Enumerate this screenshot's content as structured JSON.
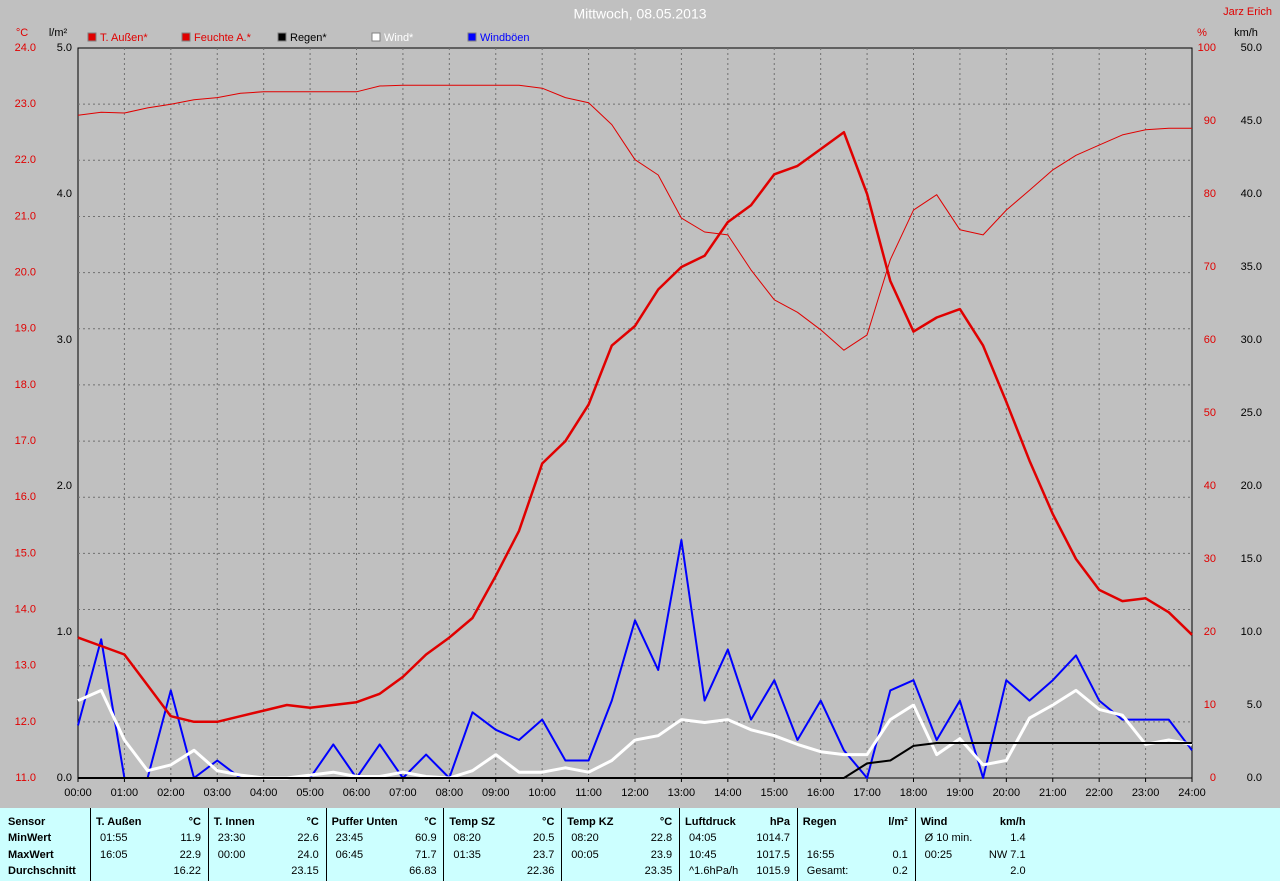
{
  "header": {
    "author": "Jarz Erich"
  },
  "chart_data": {
    "type": "line",
    "title": "Mittwoch, 08.05.2013",
    "ylabel": "°C",
    "y3label": "l/m²",
    "y2label": "%",
    "y4label": "km/h",
    "xlim": [
      0,
      24
    ],
    "xticks": [
      {
        "value": 0,
        "label": "00:00"
      },
      {
        "value": 1,
        "label": "01:00"
      },
      {
        "value": 2,
        "label": "02:00"
      },
      {
        "value": 3,
        "label": "03:00"
      },
      {
        "value": 4,
        "label": "04:00"
      },
      {
        "value": 5,
        "label": "05:00"
      },
      {
        "value": 6,
        "label": "06:00"
      },
      {
        "value": 7,
        "label": "07:00"
      },
      {
        "value": 8,
        "label": "08:00"
      },
      {
        "value": 9,
        "label": "09:00"
      },
      {
        "value": 10,
        "label": "10:00"
      },
      {
        "value": 11,
        "label": "11:00"
      },
      {
        "value": 12,
        "label": "12:00"
      },
      {
        "value": 13,
        "label": "13:00"
      },
      {
        "value": 14,
        "label": "14:00"
      },
      {
        "value": 15,
        "label": "15:00"
      },
      {
        "value": 16,
        "label": "16:00"
      },
      {
        "value": 17,
        "label": "17:00"
      },
      {
        "value": 18,
        "label": "18:00"
      },
      {
        "value": 19,
        "label": "19:00"
      },
      {
        "value": 20,
        "label": "20:00"
      },
      {
        "value": 21,
        "label": "21:00"
      },
      {
        "value": 22,
        "label": "22:00"
      },
      {
        "value": 23,
        "label": "23:00"
      },
      {
        "value": 24,
        "label": "24:00"
      }
    ],
    "ylim": [
      11,
      24
    ],
    "yticks": [
      {
        "value": 11,
        "label": "11.0"
      },
      {
        "value": 12,
        "label": "12.0"
      },
      {
        "value": 13,
        "label": "13.0"
      },
      {
        "value": 14,
        "label": "14.0"
      },
      {
        "value": 15,
        "label": "15.0"
      },
      {
        "value": 16,
        "label": "16.0"
      },
      {
        "value": 17,
        "label": "17.0"
      },
      {
        "value": 18,
        "label": "18.0"
      },
      {
        "value": 19,
        "label": "19.0"
      },
      {
        "value": 20,
        "label": "20.0"
      },
      {
        "value": 21,
        "label": "21.0"
      },
      {
        "value": 22,
        "label": "22.0"
      },
      {
        "value": 23,
        "label": "23.0"
      },
      {
        "value": 24,
        "label": "24.0"
      }
    ],
    "y3lim": [
      0,
      5
    ],
    "y3ticks": [
      {
        "value": 0,
        "label": "0.0"
      },
      {
        "value": 1,
        "label": "1.0"
      },
      {
        "value": 2,
        "label": "2.0"
      },
      {
        "value": 3,
        "label": "3.0"
      },
      {
        "value": 4,
        "label": "4.0"
      },
      {
        "value": 5,
        "label": "5.0"
      }
    ],
    "y2lim": [
      0,
      100
    ],
    "y2ticks": [
      0,
      10,
      20,
      30,
      40,
      50,
      60,
      70,
      80,
      90,
      100
    ],
    "y4lim": [
      0,
      50
    ],
    "y4ticks": [
      {
        "value": 0,
        "label": "0.0"
      },
      {
        "value": 5,
        "label": "5.0"
      },
      {
        "value": 10,
        "label": "10.0"
      },
      {
        "value": 15,
        "label": "15.0"
      },
      {
        "value": 20,
        "label": "20.0"
      },
      {
        "value": 25,
        "label": "25.0"
      },
      {
        "value": 30,
        "label": "30.0"
      },
      {
        "value": 35,
        "label": "35.0"
      },
      {
        "value": 40,
        "label": "40.0"
      },
      {
        "value": 45,
        "label": "45.0"
      },
      {
        "value": 50,
        "label": "50.0"
      }
    ],
    "grid": true,
    "x": [
      0,
      0.5,
      1,
      1.5,
      2,
      2.5,
      3,
      3.5,
      4,
      4.5,
      5,
      5.5,
      6,
      6.5,
      7,
      7.5,
      8,
      8.5,
      9,
      9.5,
      10,
      10.5,
      11,
      11.5,
      12,
      12.5,
      13,
      13.5,
      14,
      14.5,
      15,
      15.5,
      16,
      16.5,
      17,
      17.5,
      18,
      18.5,
      19,
      19.5,
      20,
      20.5,
      21,
      21.5,
      22,
      22.5,
      23,
      23.5,
      24
    ],
    "series": [
      {
        "name": "T. Außen*",
        "color": "#e00000",
        "axis": "y",
        "values": [
          13.5,
          13.35,
          13.2,
          12.65,
          12.1,
          12.0,
          12.0,
          12.1,
          12.2,
          12.3,
          12.25,
          12.3,
          12.35,
          12.5,
          12.8,
          13.2,
          13.5,
          13.85,
          14.6,
          15.4,
          16.6,
          17.0,
          17.65,
          18.7,
          19.05,
          19.7,
          20.1,
          20.3,
          20.9,
          21.2,
          21.75,
          21.9,
          22.2,
          22.5,
          21.4,
          19.85,
          18.95,
          19.2,
          19.35,
          18.7,
          17.7,
          16.65,
          15.7,
          14.9,
          14.35,
          14.15,
          14.2,
          13.95,
          13.55
        ]
      },
      {
        "name": "Feuchte A.*",
        "color": "#e00000",
        "axis": "y2",
        "values": [
          90.8,
          91.2,
          91.1,
          91.8,
          92.3,
          92.9,
          93.2,
          93.8,
          94.0,
          94.0,
          94.0,
          94.0,
          94.0,
          94.8,
          94.9,
          94.9,
          94.9,
          94.9,
          94.9,
          94.9,
          94.5,
          93.2,
          92.5,
          89.5,
          84.7,
          82.6,
          76.7,
          74.8,
          74.4,
          69.6,
          65.5,
          63.8,
          61.4,
          58.6,
          60.7,
          71.0,
          77.8,
          79.9,
          75.1,
          74.4,
          77.8,
          80.5,
          83.3,
          85.3,
          86.7,
          88.1,
          88.8,
          89.0,
          89.0
        ]
      },
      {
        "name": "Regen*",
        "color": "#000000",
        "axis": "y3",
        "values": [
          0,
          0,
          0,
          0,
          0,
          0,
          0,
          0,
          0,
          0,
          0,
          0,
          0,
          0,
          0,
          0,
          0,
          0,
          0,
          0,
          0,
          0,
          0,
          0,
          0,
          0,
          0,
          0,
          0,
          0,
          0,
          0,
          0,
          0,
          0.1,
          0.12,
          0.22,
          0.24,
          0.24,
          0.24,
          0.24,
          0.24,
          0.24,
          0.24,
          0.24,
          0.24,
          0.24,
          0.24,
          0.24
        ]
      },
      {
        "name": "Wind*",
        "color": "#ffffff",
        "axis": "y4",
        "values": [
          5.3,
          6.0,
          2.6,
          0.5,
          0.9,
          1.9,
          0.5,
          0.2,
          0,
          0,
          0.2,
          0.4,
          0.1,
          0.1,
          0.4,
          0.1,
          0,
          0.5,
          1.6,
          0.4,
          0.4,
          0.7,
          0.4,
          1.2,
          2.6,
          2.9,
          4.0,
          3.8,
          4.0,
          3.3,
          2.9,
          2.3,
          1.8,
          1.6,
          1.6,
          4.0,
          5.0,
          1.6,
          2.7,
          0.9,
          1.2,
          4.1,
          5.0,
          6.0,
          4.7,
          4.3,
          2.3,
          2.6,
          2.3
        ]
      },
      {
        "name": "Windböen",
        "color": "#0000ff",
        "axis": "y4",
        "values": [
          3.6,
          9.5,
          0,
          0,
          6.0,
          0,
          1.2,
          0,
          0,
          0,
          0,
          2.3,
          0,
          2.3,
          0,
          1.6,
          0,
          4.5,
          3.3,
          2.6,
          4.0,
          1.2,
          1.2,
          5.3,
          10.8,
          7.4,
          16.3,
          5.3,
          8.8,
          4.0,
          6.7,
          2.6,
          5.3,
          1.9,
          0,
          6.0,
          6.7,
          2.6,
          5.3,
          0,
          6.7,
          5.3,
          6.7,
          8.4,
          5.3,
          4.0,
          4.0,
          4.0,
          1.9
        ]
      }
    ]
  },
  "stats": {
    "row_labels": [
      "Sensor",
      "MinWert",
      "MaxWert",
      "Durchschnitt"
    ],
    "groups": [
      {
        "title": "T. Außen",
        "unit": "°C",
        "rows": [
          [
            "01:55",
            "11.9"
          ],
          [
            "16:05",
            "22.9"
          ],
          [
            null,
            "16.22"
          ]
        ]
      },
      {
        "title": "T. Innen",
        "unit": "°C",
        "rows": [
          [
            "23:30",
            "22.6"
          ],
          [
            "00:00",
            "24.0"
          ],
          [
            null,
            "23.15"
          ]
        ]
      },
      {
        "title": "Puffer Unten",
        "unit": "°C",
        "rows": [
          [
            "23:45",
            "60.9"
          ],
          [
            "06:45",
            "71.7"
          ],
          [
            null,
            "66.83"
          ]
        ]
      },
      {
        "title": "Temp SZ",
        "unit": "°C",
        "rows": [
          [
            "08:20",
            "20.5"
          ],
          [
            "01:35",
            "23.7"
          ],
          [
            null,
            "22.36"
          ]
        ]
      },
      {
        "title": "Temp KZ",
        "unit": "°C",
        "rows": [
          [
            "08:20",
            "22.8"
          ],
          [
            "00:05",
            "23.9"
          ],
          [
            null,
            "23.35"
          ]
        ]
      },
      {
        "title": "Luftdruck",
        "unit": "hPa",
        "rows": [
          [
            "04:05",
            "1014.7"
          ],
          [
            "10:45",
            "1017.5"
          ],
          [
            "^1.6hPa/h",
            "1015.9"
          ]
        ]
      },
      {
        "title": "Regen",
        "unit": "l/m²",
        "rows": [
          [
            null,
            null
          ],
          [
            "16:55",
            "0.1"
          ],
          [
            "Gesamt:",
            "0.2"
          ]
        ]
      },
      {
        "title": "Wind",
        "unit": "km/h",
        "rows": [
          [
            "Ø 10 min.",
            "1.4"
          ],
          [
            "00:25",
            "NW 7.1"
          ],
          [
            null,
            "2.0"
          ]
        ]
      }
    ]
  }
}
